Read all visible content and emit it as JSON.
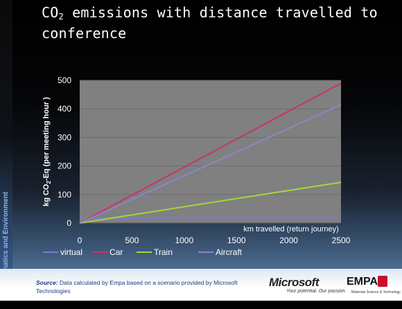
{
  "slide": {
    "title_before": "CO",
    "title_sub": "2",
    "title_after": " emissions with distance travelled to conference",
    "side_label": "Informatics and Environment"
  },
  "footer": {
    "source_label": "Source:",
    "source_text": " Data calculated by Empa based on a scenario provided by Microsoft Technologies",
    "ms_logo": "Microsoft",
    "ms_tagline": "Your potential. Our passion.",
    "empa_logo": "EMPA",
    "empa_tagline": "Materials Science & Technology"
  },
  "chart_data": {
    "type": "line",
    "ylabel_before": "kg CO",
    "ylabel_sub": "2",
    "ylabel_after": "-Eq (per meeting hour )",
    "xlabel": "km travelled (return journey)",
    "xlim": [
      0,
      2500
    ],
    "ylim": [
      0,
      500
    ],
    "xticks": [
      0,
      500,
      1000,
      1500,
      2000,
      2500
    ],
    "yticks": [
      0,
      100,
      200,
      300,
      400,
      500
    ],
    "grid": true,
    "legend_position": "bottom",
    "series": [
      {
        "name": "virtual",
        "color": "#7b7bcc",
        "x": [
          0,
          2500
        ],
        "y": [
          18,
          18
        ]
      },
      {
        "name": "Car",
        "color": "#c8346a",
        "x": [
          0,
          2500
        ],
        "y": [
          0,
          490
        ]
      },
      {
        "name": "Train",
        "color": "#a4d63a",
        "x": [
          0,
          2500
        ],
        "y": [
          0,
          143
        ]
      },
      {
        "name": "Aircraft",
        "color": "#8a86c8",
        "x": [
          0,
          2500
        ],
        "y": [
          0,
          415
        ]
      }
    ]
  }
}
